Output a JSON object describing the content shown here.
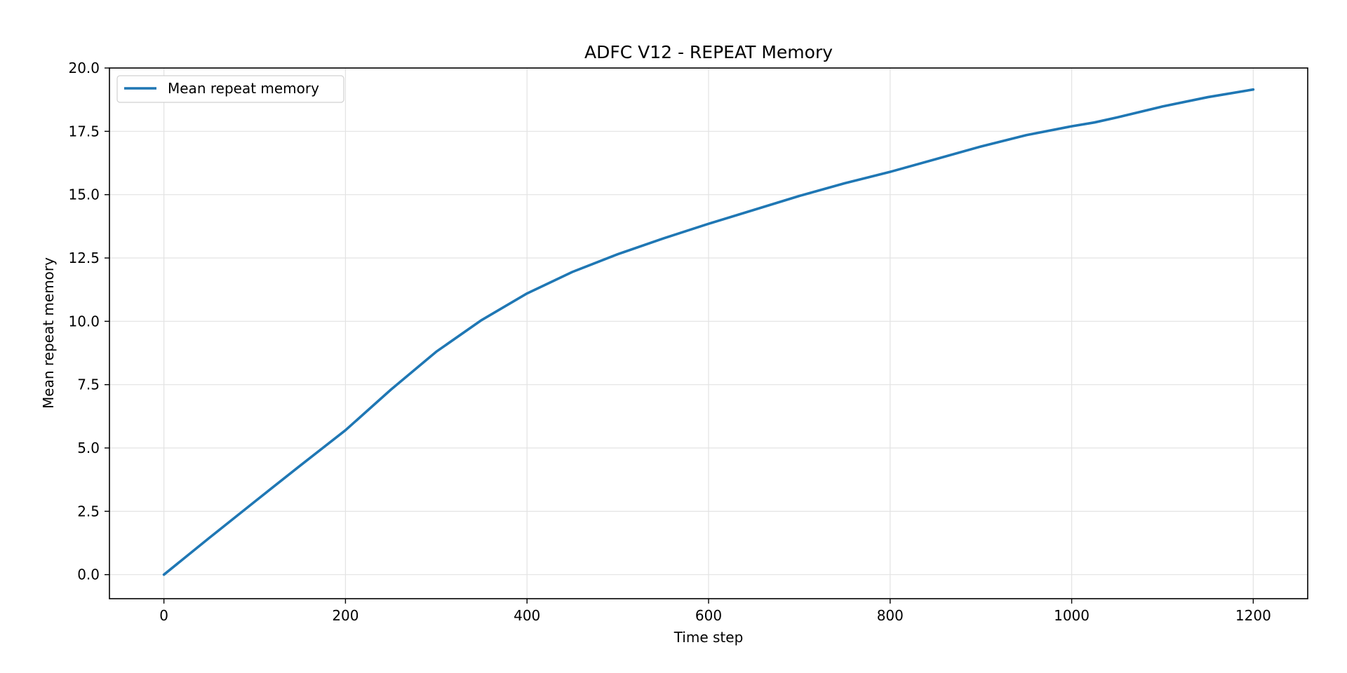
{
  "chart_data": {
    "type": "line",
    "title": "ADFC V12 - REPEAT Memory",
    "xlabel": "Time step",
    "ylabel": "Mean repeat memory",
    "xlim": [
      -60,
      1260
    ],
    "ylim": [
      -0.95,
      20
    ],
    "xticks": [
      0,
      200,
      400,
      600,
      800,
      1000,
      1200
    ],
    "xtick_labels": [
      "0",
      "200",
      "400",
      "600",
      "800",
      "1000",
      "1200"
    ],
    "yticks": [
      0,
      2.5,
      5,
      7.5,
      10,
      12.5,
      15,
      17.5,
      20
    ],
    "ytick_labels": [
      "0.0",
      "2.5",
      "5.0",
      "7.5",
      "10.0",
      "12.5",
      "15.0",
      "17.5",
      "20.0"
    ],
    "grid": true,
    "legend": {
      "position": "top-left"
    },
    "series": [
      {
        "name": "Mean repeat memory",
        "color": "#1f77b4",
        "x": [
          0,
          50,
          100,
          150,
          200,
          250,
          300,
          350,
          400,
          450,
          500,
          550,
          600,
          650,
          700,
          750,
          800,
          850,
          900,
          950,
          1000,
          1025,
          1050,
          1100,
          1150,
          1200
        ],
        "y": [
          0,
          1.45,
          2.88,
          4.3,
          5.7,
          7.3,
          8.8,
          10.05,
          11.1,
          11.95,
          12.65,
          13.27,
          13.85,
          14.4,
          14.95,
          15.45,
          15.9,
          16.4,
          16.9,
          17.35,
          17.7,
          17.85,
          18.05,
          18.48,
          18.85,
          19.15
        ]
      }
    ]
  }
}
